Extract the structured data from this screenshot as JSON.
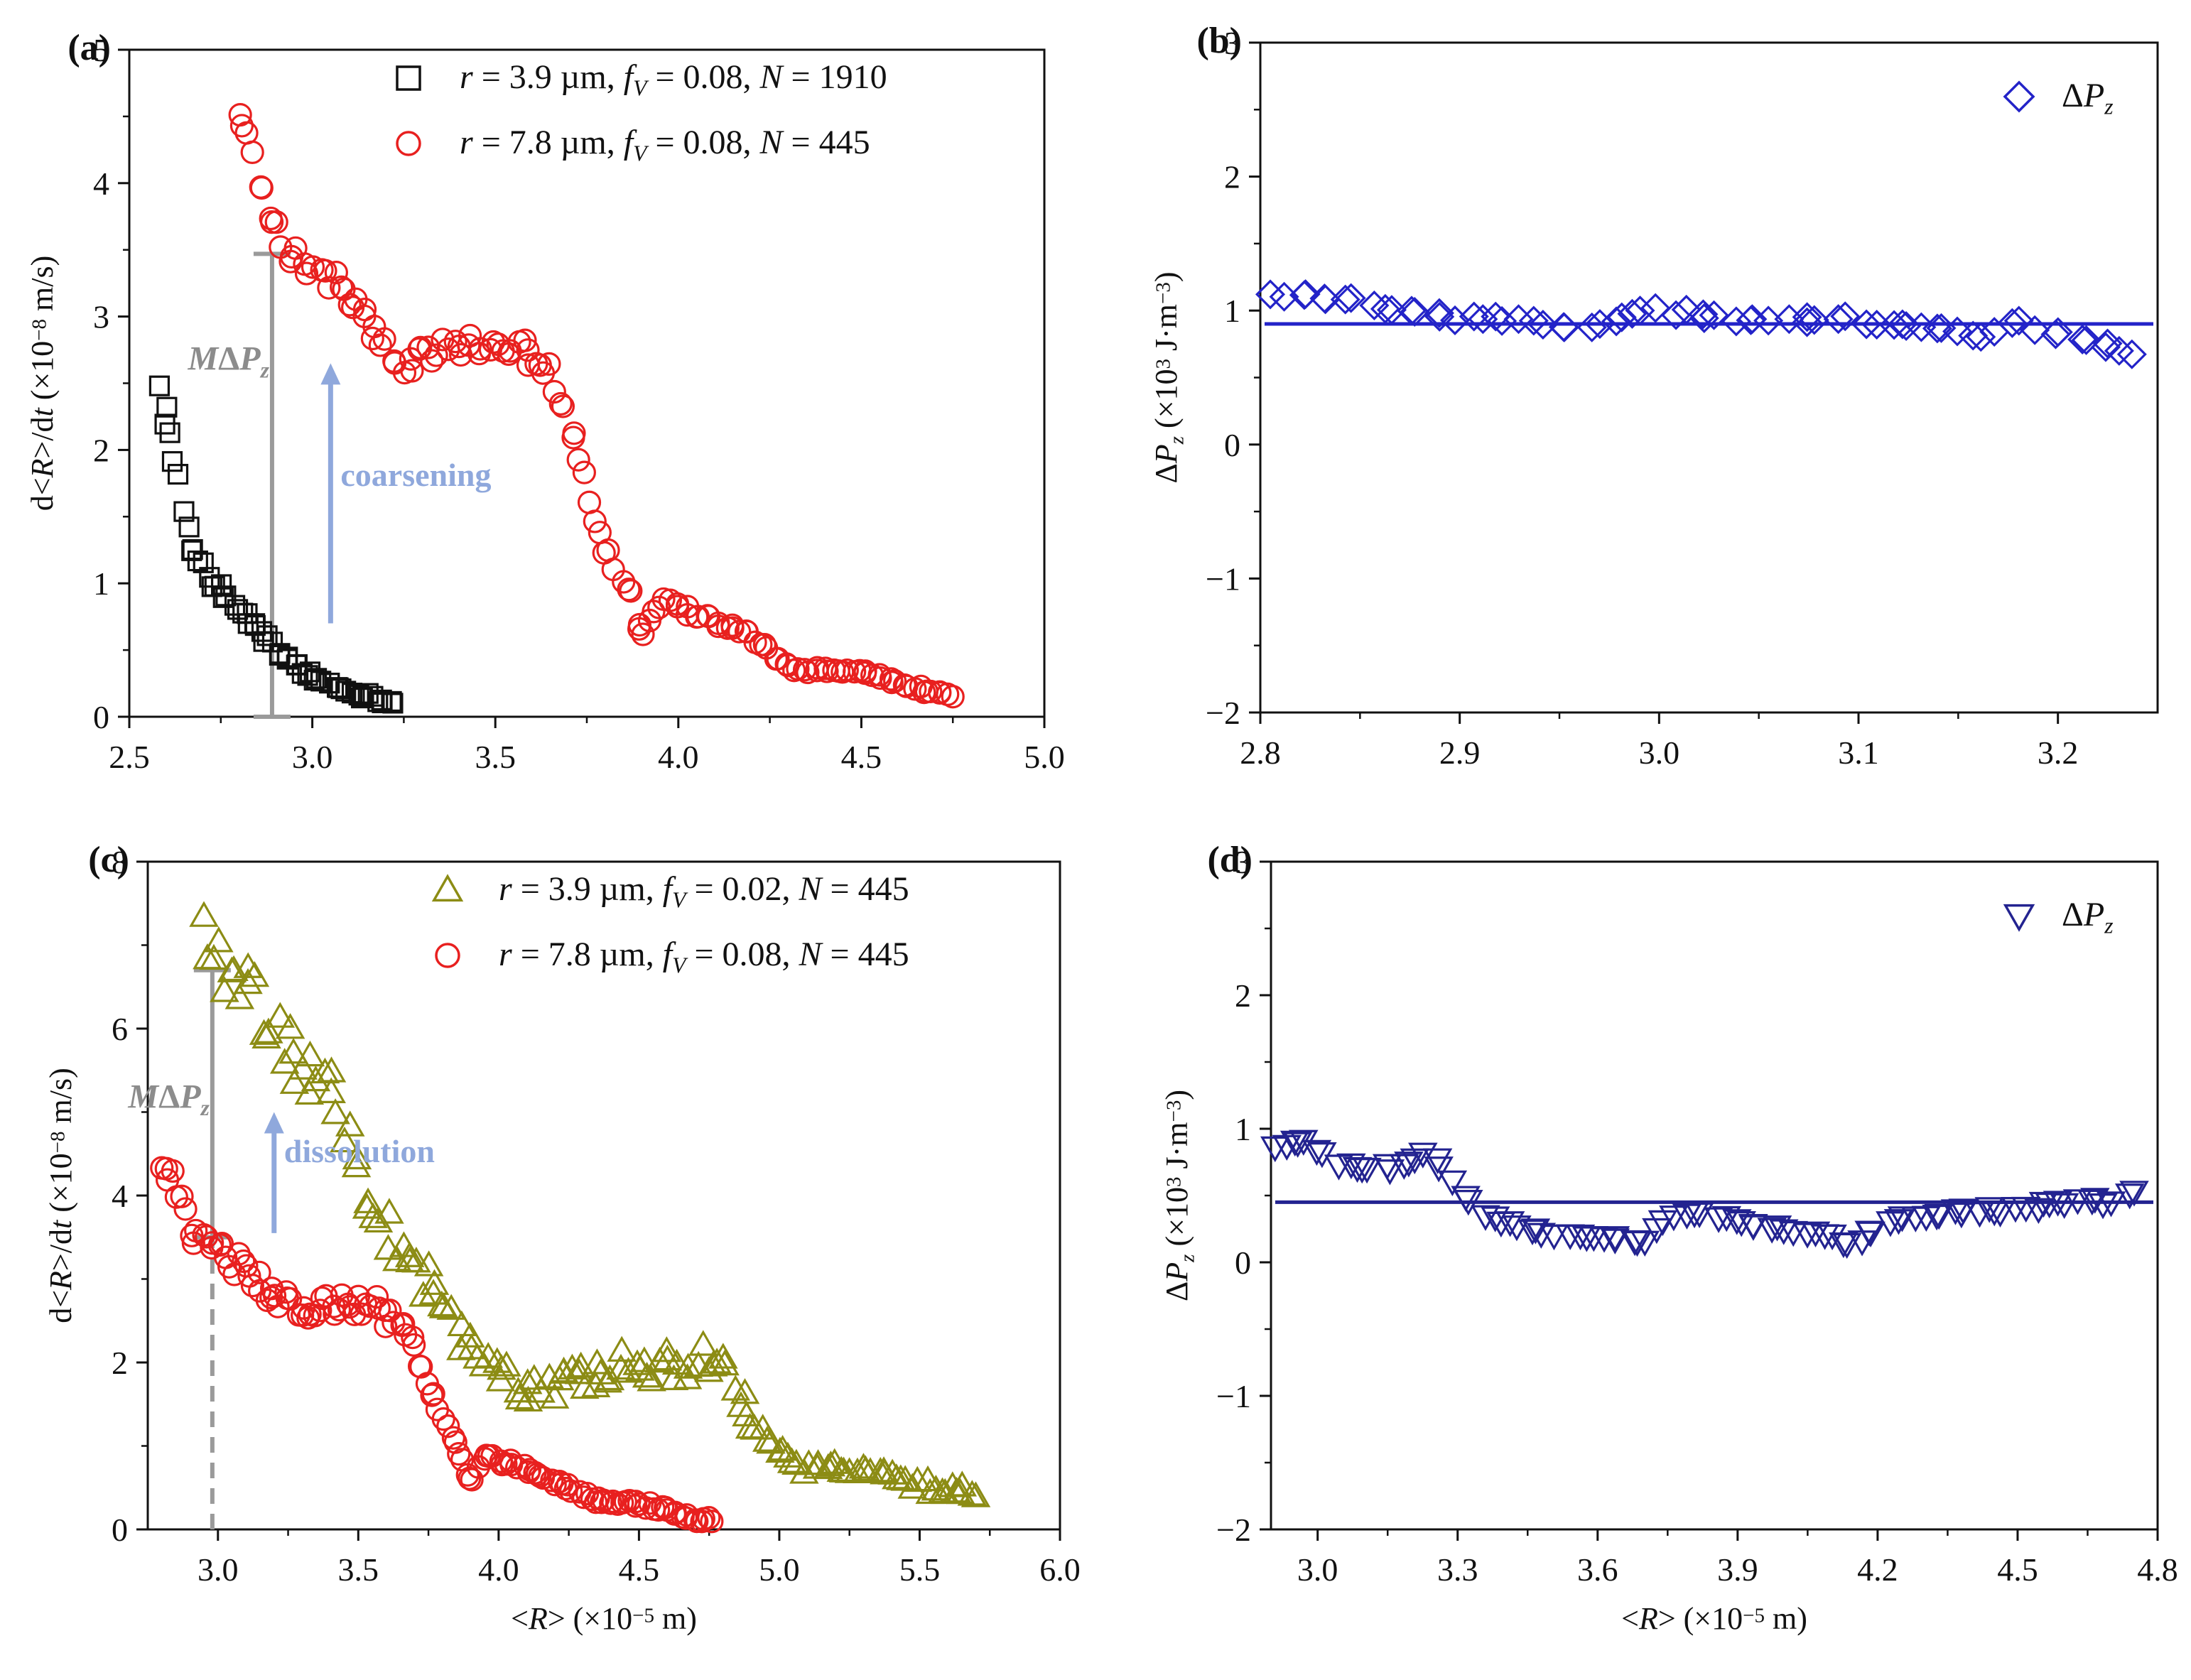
{
  "figure_title": "Four-panel figure: growth rate d<R>/dt and pressure difference ΔPz versus mean radius <R>",
  "chart_data": [
    {
      "id": "a",
      "type": "scatter",
      "panel_label": "(a)",
      "xlabel": "",
      "ylabel": "d<R>/dt (×10⁻⁸ m/s)",
      "xlim": [
        2.5,
        5.0
      ],
      "ylim": [
        0,
        5
      ],
      "xticks": [
        2.5,
        3.0,
        3.5,
        4.0,
        4.5,
        5.0
      ],
      "xtick_labels": [
        "2.5",
        "3.0",
        "3.5",
        "4.0",
        "4.5",
        "5.0"
      ],
      "yticks": [
        0,
        1,
        2,
        3,
        4,
        5
      ],
      "ytick_labels": [
        "0",
        "1",
        "2",
        "3",
        "4",
        "5"
      ],
      "legend_position": "top-right",
      "series": [
        {
          "name": "r = 3.9 µm, fV = 0.08, N = 1910",
          "legend_parts": [
            "r",
            " = 3.9 µm, ",
            "f",
            "V",
            " = 0.08,   ",
            "N",
            " = 1910"
          ],
          "marker": "square",
          "color": "#111111",
          "trend": [
            [
              2.58,
              2.55
            ],
            [
              2.6,
              2.25
            ],
            [
              2.62,
              1.95
            ],
            [
              2.65,
              1.45
            ],
            [
              2.68,
              1.25
            ],
            [
              2.72,
              1.05
            ],
            [
              2.78,
              0.85
            ],
            [
              2.85,
              0.65
            ],
            [
              2.92,
              0.45
            ],
            [
              3.0,
              0.3
            ],
            [
              3.1,
              0.18
            ],
            [
              3.2,
              0.12
            ],
            [
              3.22,
              0.1
            ]
          ],
          "jitter": 0.22,
          "count": 58
        },
        {
          "name": "r = 7.8 µm, fV = 0.08, N = 445",
          "legend_parts": [
            "r",
            " = 7.8 µm, ",
            "f",
            "V",
            " = 0.08,   ",
            "N",
            " = 445"
          ],
          "marker": "circle",
          "color": "#e8201f",
          "trend": [
            [
              2.8,
              4.5
            ],
            [
              2.82,
              4.35
            ],
            [
              2.85,
              4.1
            ],
            [
              2.88,
              3.85
            ],
            [
              2.92,
              3.55
            ],
            [
              3.0,
              3.35
            ],
            [
              3.05,
              3.3
            ],
            [
              3.1,
              3.15
            ],
            [
              3.15,
              2.95
            ],
            [
              3.2,
              2.75
            ],
            [
              3.25,
              2.65
            ],
            [
              3.3,
              2.7
            ],
            [
              3.35,
              2.75
            ],
            [
              3.45,
              2.78
            ],
            [
              3.55,
              2.8
            ],
            [
              3.6,
              2.7
            ],
            [
              3.65,
              2.55
            ],
            [
              3.7,
              2.25
            ],
            [
              3.75,
              1.75
            ],
            [
              3.78,
              1.35
            ],
            [
              3.82,
              1.15
            ],
            [
              3.87,
              0.9
            ],
            [
              3.9,
              0.6
            ],
            [
              3.95,
              0.85
            ],
            [
              4.0,
              0.85
            ],
            [
              4.05,
              0.75
            ],
            [
              4.1,
              0.7
            ],
            [
              4.2,
              0.6
            ],
            [
              4.27,
              0.45
            ],
            [
              4.32,
              0.35
            ],
            [
              4.4,
              0.35
            ],
            [
              4.5,
              0.35
            ],
            [
              4.6,
              0.25
            ],
            [
              4.7,
              0.18
            ],
            [
              4.75,
              0.15
            ]
          ],
          "jitter": 0.18,
          "count": 145
        }
      ],
      "annotations": [
        {
          "text": "MΔPz",
          "parts": [
            "M",
            "ΔP",
            "z"
          ],
          "color": "#8c8c8c"
        },
        {
          "text": "coarsening",
          "color": "#8fa8dc"
        }
      ],
      "markers": {
        "bar_x": 2.89,
        "bar_y0": 0.0,
        "bar_y1": 3.47,
        "arrow_x": 3.05,
        "arrow_y0": 0.7,
        "arrow_y1": 2.65
      }
    },
    {
      "id": "b",
      "type": "scatter",
      "panel_label": "(b)",
      "xlabel": "",
      "ylabel": "ΔPz (×10³ J·m⁻³)",
      "xlim": [
        2.8,
        3.25
      ],
      "ylim": [
        -2,
        3
      ],
      "xticks": [
        2.8,
        2.9,
        3.0,
        3.1,
        3.2
      ],
      "xtick_labels": [
        "2.8",
        "2.9",
        "3.0",
        "3.1",
        "3.2"
      ],
      "yticks": [
        -2,
        -1,
        0,
        1,
        2,
        3
      ],
      "ytick_labels": [
        "−2",
        "−1",
        "0",
        "1",
        "2",
        "3"
      ],
      "legend_position": "top-right",
      "series": [
        {
          "name": "ΔPz",
          "legend_parts": [
            "ΔP",
            "z"
          ],
          "marker": "diamond",
          "color": "#2323c8",
          "trend": [
            [
              2.805,
              1.15
            ],
            [
              2.83,
              1.08
            ],
            [
              2.86,
              1.05
            ],
            [
              2.9,
              0.95
            ],
            [
              2.93,
              0.95
            ],
            [
              2.96,
              0.83
            ],
            [
              2.98,
              0.95
            ],
            [
              3.0,
              1.0
            ],
            [
              3.05,
              0.93
            ],
            [
              3.1,
              0.93
            ],
            [
              3.14,
              0.88
            ],
            [
              3.16,
              0.82
            ],
            [
              3.18,
              0.9
            ],
            [
              3.2,
              0.82
            ],
            [
              3.24,
              0.68
            ]
          ],
          "jitter": 0.04,
          "count": 70,
          "fit_line": 0.9
        }
      ]
    },
    {
      "id": "c",
      "type": "scatter",
      "panel_label": "(c)",
      "xlabel": "<R> (×10⁻⁵ m)",
      "ylabel": "d<R>/dt (×10⁻⁸ m/s)",
      "xlim": [
        2.75,
        6.0
      ],
      "ylim": [
        0,
        8
      ],
      "xticks": [
        3.0,
        3.5,
        4.0,
        4.5,
        5.0,
        5.5,
        6.0
      ],
      "xtick_labels": [
        "3.0",
        "3.5",
        "4.0",
        "4.5",
        "5.0",
        "5.5",
        "6.0"
      ],
      "yticks": [
        0,
        2,
        4,
        6,
        8
      ],
      "ytick_labels": [
        "0",
        "2",
        "4",
        "6",
        "8"
      ],
      "legend_position": "top-right",
      "series": [
        {
          "name": "r = 3.9 µm, fV = 0.02, N = 445",
          "legend_parts": [
            "r",
            " = 3.9 µm, ",
            "f",
            "V",
            " = 0.02,   ",
            "N",
            " = 445"
          ],
          "marker": "triangle-up",
          "color": "#8c8c14",
          "trend": [
            [
              2.95,
              7.2
            ],
            [
              3.0,
              6.75
            ],
            [
              3.1,
              6.6
            ],
            [
              3.2,
              6.0
            ],
            [
              3.3,
              5.5
            ],
            [
              3.4,
              5.3
            ],
            [
              3.45,
              4.8
            ],
            [
              3.5,
              4.2
            ],
            [
              3.6,
              3.6
            ],
            [
              3.7,
              3.2
            ],
            [
              3.8,
              2.7
            ],
            [
              3.9,
              2.2
            ],
            [
              4.0,
              1.9
            ],
            [
              4.15,
              1.6
            ],
            [
              4.3,
              1.8
            ],
            [
              4.5,
              2.0
            ],
            [
              4.65,
              1.9
            ],
            [
              4.8,
              2.2
            ],
            [
              4.9,
              1.3
            ],
            [
              5.0,
              0.9
            ],
            [
              5.1,
              0.7
            ],
            [
              5.2,
              0.8
            ],
            [
              5.4,
              0.6
            ],
            [
              5.55,
              0.5
            ],
            [
              5.7,
              0.45
            ]
          ],
          "jitter": 0.6,
          "count": 150
        },
        {
          "name": "r = 7.8 µm, fV = 0.08, N = 445",
          "legend_parts": [
            "r",
            " = 7.8 µm, ",
            "f",
            "V",
            " = 0.08,   ",
            "N",
            " = 445"
          ],
          "marker": "circle",
          "color": "#e8201f",
          "trend": [
            [
              2.8,
              4.45
            ],
            [
              2.85,
              4.1
            ],
            [
              2.9,
              3.6
            ],
            [
              3.0,
              3.35
            ],
            [
              3.1,
              3.1
            ],
            [
              3.2,
              2.75
            ],
            [
              3.3,
              2.65
            ],
            [
              3.45,
              2.7
            ],
            [
              3.55,
              2.7
            ],
            [
              3.6,
              2.55
            ],
            [
              3.7,
              2.2
            ],
            [
              3.75,
              1.7
            ],
            [
              3.8,
              1.3
            ],
            [
              3.85,
              1.0
            ],
            [
              3.9,
              0.6
            ],
            [
              3.95,
              0.85
            ],
            [
              4.05,
              0.8
            ],
            [
              4.15,
              0.65
            ],
            [
              4.25,
              0.5
            ],
            [
              4.35,
              0.35
            ],
            [
              4.5,
              0.3
            ],
            [
              4.6,
              0.25
            ],
            [
              4.7,
              0.12
            ],
            [
              4.76,
              0.1
            ]
          ],
          "jitter": 0.3,
          "count": 140
        }
      ],
      "annotations": [
        {
          "text": "MΔPz",
          "parts": [
            "M",
            "ΔP",
            "z"
          ],
          "color": "#8c8c8c"
        },
        {
          "text": "dissolution",
          "color": "#8fa8dc"
        }
      ],
      "markers": {
        "bar_x": 2.98,
        "bar_y0": 3.5,
        "bar_y1": 6.7,
        "dash_y1": 3.5,
        "arrow_x": 3.2,
        "arrow_y0": 3.55,
        "arrow_y1": 5.0
      }
    },
    {
      "id": "d",
      "type": "scatter",
      "panel_label": "(d)",
      "xlabel": "<R> (×10⁻⁵ m)",
      "ylabel": "ΔPz (×10³ J·m⁻³)",
      "xlim": [
        2.9,
        4.8
      ],
      "ylim": [
        -2,
        3
      ],
      "xticks": [
        3.0,
        3.3,
        3.6,
        3.9,
        4.2,
        4.5,
        4.8
      ],
      "xtick_labels": [
        "3.0",
        "3.3",
        "3.6",
        "3.9",
        "4.2",
        "4.5",
        "4.8"
      ],
      "yticks": [
        -2,
        -1,
        0,
        1,
        2,
        3
      ],
      "ytick_labels": [
        "−2",
        "−1",
        "0",
        "1",
        "2",
        "3"
      ],
      "legend_position": "top-right",
      "series": [
        {
          "name": "ΔPz",
          "legend_parts": [
            "ΔP",
            "z"
          ],
          "marker": "triangle-down",
          "color": "#232390",
          "trend": [
            [
              2.9,
              0.85
            ],
            [
              2.95,
              0.95
            ],
            [
              3.0,
              0.85
            ],
            [
              3.05,
              0.75
            ],
            [
              3.1,
              0.68
            ],
            [
              3.15,
              0.7
            ],
            [
              3.2,
              0.78
            ],
            [
              3.25,
              0.8
            ],
            [
              3.3,
              0.55
            ],
            [
              3.35,
              0.35
            ],
            [
              3.4,
              0.3
            ],
            [
              3.45,
              0.25
            ],
            [
              3.5,
              0.2
            ],
            [
              3.6,
              0.2
            ],
            [
              3.7,
              0.15
            ],
            [
              3.75,
              0.35
            ],
            [
              3.85,
              0.35
            ],
            [
              3.9,
              0.3
            ],
            [
              4.0,
              0.25
            ],
            [
              4.1,
              0.2
            ],
            [
              4.15,
              0.1
            ],
            [
              4.2,
              0.3
            ],
            [
              4.3,
              0.35
            ],
            [
              4.4,
              0.38
            ],
            [
              4.5,
              0.4
            ],
            [
              4.6,
              0.45
            ],
            [
              4.7,
              0.45
            ],
            [
              4.75,
              0.55
            ]
          ],
          "jitter": 0.08,
          "count": 95,
          "fit_line": 0.45
        }
      ]
    }
  ]
}
